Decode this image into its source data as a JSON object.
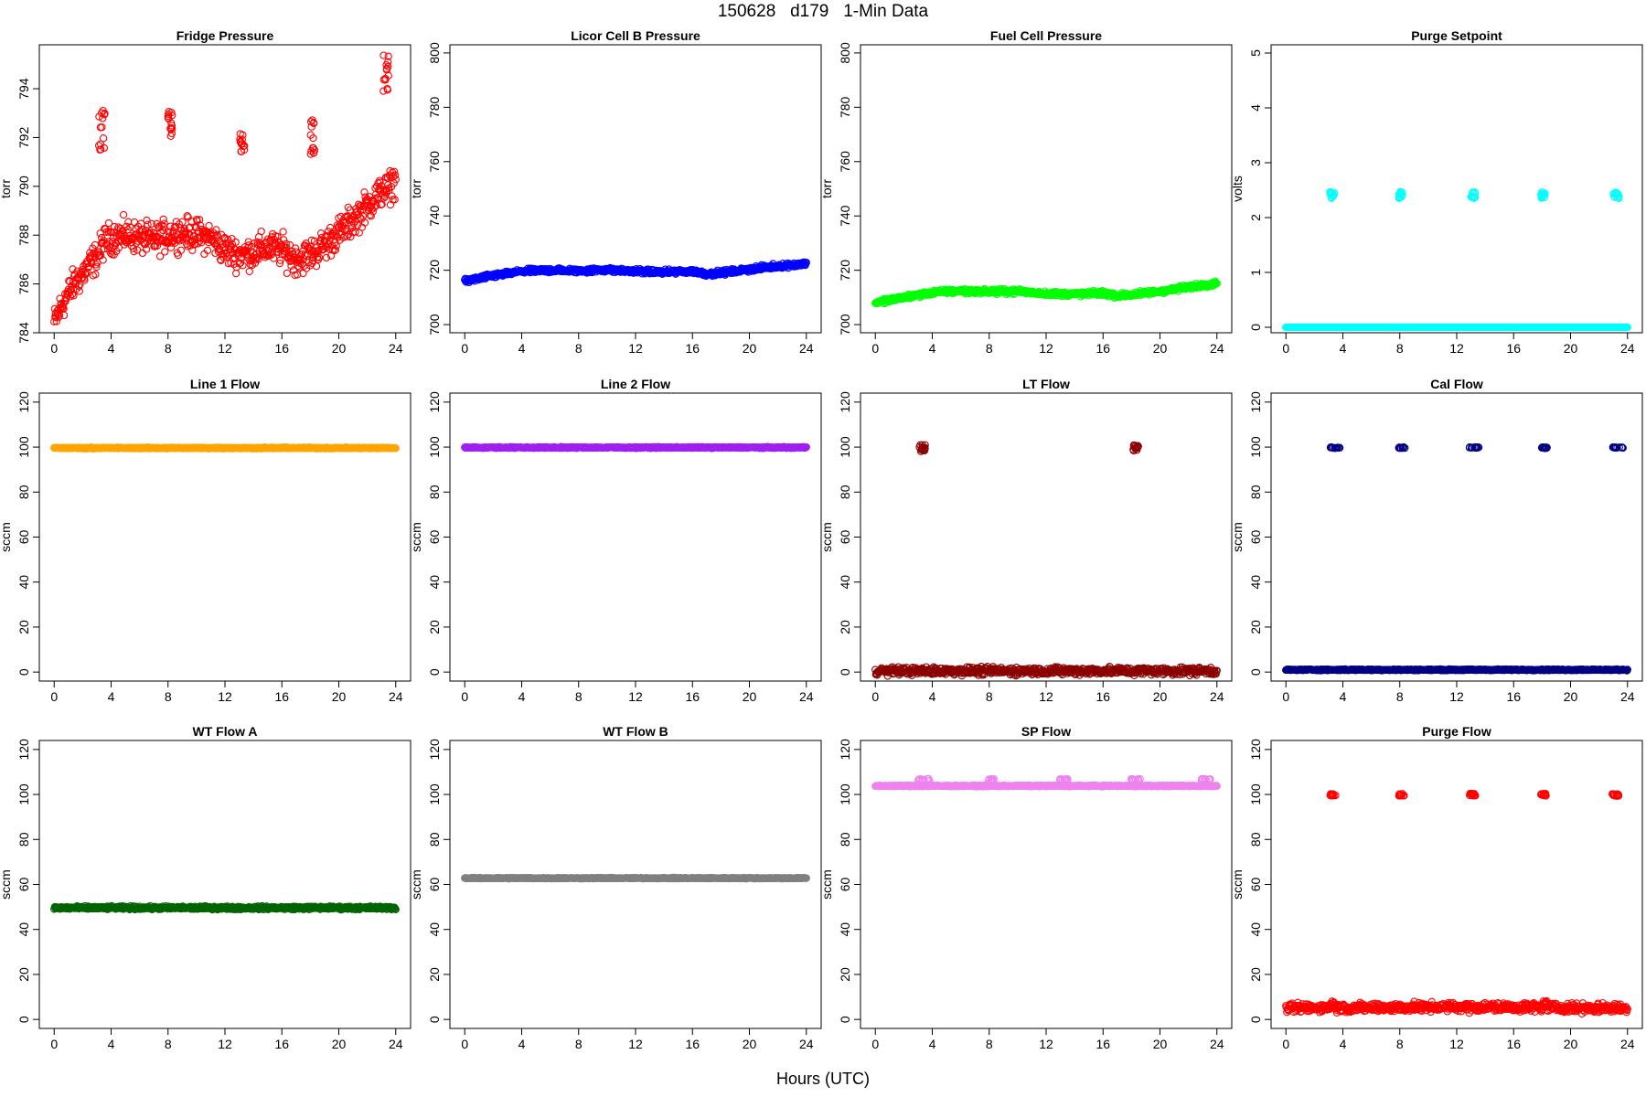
{
  "figure": {
    "title": "150628   d179   1-Min Data",
    "xlabel": "Hours (UTC)"
  },
  "chart_data": [
    {
      "type": "scatter",
      "title": "Fridge Pressure",
      "ylabel": "torr",
      "color": "#ff0000",
      "marker": "open-circle",
      "xlim": [
        0,
        24
      ],
      "ylim": [
        784,
        795.8
      ],
      "xticks": [
        0,
        4,
        8,
        12,
        16,
        20,
        24
      ],
      "yticks": [
        784,
        786,
        788,
        790,
        792,
        794
      ],
      "profile": [
        [
          0,
          784.4
        ],
        [
          0.5,
          785.1
        ],
        [
          1,
          785.6
        ],
        [
          1.5,
          786.1
        ],
        [
          2,
          786.4
        ],
        [
          2.5,
          786.8
        ],
        [
          3,
          787.1
        ],
        [
          3.5,
          787.7
        ],
        [
          4,
          787.9
        ],
        [
          5,
          788.0
        ],
        [
          6,
          787.9
        ],
        [
          7,
          787.8
        ],
        [
          8,
          788.0
        ],
        [
          9,
          788.1
        ],
        [
          10,
          788.0
        ],
        [
          11,
          787.9
        ],
        [
          12,
          787.4
        ],
        [
          13,
          787.2
        ],
        [
          14,
          787.3
        ],
        [
          15,
          787.5
        ],
        [
          16,
          787.4
        ],
        [
          17,
          787.0
        ],
        [
          18,
          787.2
        ],
        [
          19,
          787.6
        ],
        [
          20,
          788.1
        ],
        [
          21,
          788.6
        ],
        [
          22,
          789.2
        ],
        [
          23,
          789.8
        ],
        [
          23.5,
          789.9
        ],
        [
          24,
          790.3
        ]
      ],
      "noise": 0.45,
      "clusters": [
        {
          "x": [
            3.1,
            3.6
          ],
          "y": [
            791.3,
            793.1
          ]
        },
        {
          "x": [
            8.0,
            8.3
          ],
          "y": [
            792.0,
            793.1
          ]
        },
        {
          "x": [
            13.0,
            13.4
          ],
          "y": [
            791.4,
            792.2
          ]
        },
        {
          "x": [
            18.0,
            18.3
          ],
          "y": [
            791.3,
            793.0
          ]
        },
        {
          "x": [
            23.1,
            23.5
          ],
          "y": [
            793.8,
            795.4
          ]
        }
      ]
    },
    {
      "type": "scatter",
      "title": "Licor Cell B Pressure",
      "ylabel": "torr",
      "color": "#0000ff",
      "marker": "open-circle",
      "xlim": [
        0,
        24
      ],
      "ylim": [
        697,
        803
      ],
      "xticks": [
        0,
        4,
        8,
        12,
        16,
        20,
        24
      ],
      "yticks": [
        700,
        720,
        740,
        760,
        780,
        800
      ],
      "profile": [
        [
          0,
          716
        ],
        [
          2,
          718
        ],
        [
          4,
          719.6
        ],
        [
          6,
          720
        ],
        [
          8,
          719.8
        ],
        [
          10,
          720.2
        ],
        [
          12,
          719.6
        ],
        [
          14,
          719.3
        ],
        [
          16,
          719.6
        ],
        [
          17,
          718.7
        ],
        [
          18,
          719
        ],
        [
          20,
          720.4
        ],
        [
          22,
          721.5
        ],
        [
          24,
          722.5
        ]
      ],
      "noise": 0.6,
      "clusters": []
    },
    {
      "type": "scatter",
      "title": "Fuel Cell Pressure",
      "ylabel": "torr",
      "color": "#00ff00",
      "marker": "open-circle",
      "xlim": [
        0,
        24
      ],
      "ylim": [
        697,
        803
      ],
      "xticks": [
        0,
        4,
        8,
        12,
        16,
        20,
        24
      ],
      "yticks": [
        700,
        720,
        740,
        760,
        780,
        800
      ],
      "profile": [
        [
          0,
          708
        ],
        [
          2,
          710
        ],
        [
          4,
          711.8
        ],
        [
          6,
          712.4
        ],
        [
          8,
          712.1
        ],
        [
          10,
          712.3
        ],
        [
          12,
          711.4
        ],
        [
          14,
          711.2
        ],
        [
          16,
          711.6
        ],
        [
          17,
          710.6
        ],
        [
          18,
          711
        ],
        [
          20,
          712.2
        ],
        [
          22,
          713.8
        ],
        [
          24,
          715.3
        ]
      ],
      "noise": 0.6,
      "clusters": []
    },
    {
      "type": "scatter",
      "title": "Purge Setpoint",
      "ylabel": "volts",
      "color": "#00ffff",
      "marker": "open-circle",
      "xlim": [
        0,
        24
      ],
      "ylim": [
        -0.1,
        5.15
      ],
      "xticks": [
        0,
        4,
        8,
        12,
        16,
        20,
        24
      ],
      "yticks": [
        0,
        1,
        2,
        3,
        4,
        5
      ],
      "profile": [
        [
          0,
          0
        ],
        [
          24,
          0
        ]
      ],
      "noise": 0,
      "clusters": [
        {
          "x": [
            3.1,
            3.5
          ],
          "y": [
            2.35,
            2.47
          ]
        },
        {
          "x": [
            7.9,
            8.2
          ],
          "y": [
            2.35,
            2.47
          ]
        },
        {
          "x": [
            13.0,
            13.3
          ],
          "y": [
            2.35,
            2.47
          ]
        },
        {
          "x": [
            17.9,
            18.2
          ],
          "y": [
            2.35,
            2.47
          ]
        },
        {
          "x": [
            23.0,
            23.4
          ],
          "y": [
            2.35,
            2.47
          ]
        }
      ]
    },
    {
      "type": "scatter",
      "title": "Line 1 Flow",
      "ylabel": "sccm",
      "color": "#ffa500",
      "marker": "open-circle",
      "xlim": [
        0,
        24
      ],
      "ylim": [
        -4,
        124
      ],
      "xticks": [
        0,
        4,
        8,
        12,
        16,
        20,
        24
      ],
      "yticks": [
        0,
        20,
        40,
        60,
        80,
        100,
        120
      ],
      "profile": [
        [
          0,
          99.6
        ],
        [
          24,
          99.6
        ]
      ],
      "noise": 0.2,
      "clusters": []
    },
    {
      "type": "scatter",
      "title": "Line 2 Flow",
      "ylabel": "sccm",
      "color": "#a020f0",
      "marker": "open-circle",
      "xlim": [
        0,
        24
      ],
      "ylim": [
        -4,
        124
      ],
      "xticks": [
        0,
        4,
        8,
        12,
        16,
        20,
        24
      ],
      "yticks": [
        0,
        20,
        40,
        60,
        80,
        100,
        120
      ],
      "profile": [
        [
          0,
          99.8
        ],
        [
          24,
          99.8
        ]
      ],
      "noise": 0.2,
      "clusters": []
    },
    {
      "type": "scatter",
      "title": "LT Flow",
      "ylabel": "sccm",
      "color": "#8b0000",
      "marker": "open-circle",
      "xlim": [
        0,
        24
      ],
      "ylim": [
        -4,
        124
      ],
      "xticks": [
        0,
        4,
        8,
        12,
        16,
        20,
        24
      ],
      "yticks": [
        0,
        20,
        40,
        60,
        80,
        100,
        120
      ],
      "profile": [
        [
          0,
          0.5
        ],
        [
          24,
          0.5
        ]
      ],
      "noise": 1.2,
      "clusters": [
        {
          "x": [
            3.1,
            3.5
          ],
          "y": [
            98,
            101
          ]
        },
        {
          "x": [
            18.1,
            18.5
          ],
          "y": [
            98,
            101
          ]
        }
      ]
    },
    {
      "type": "scatter",
      "title": "Cal Flow",
      "ylabel": "sccm",
      "color": "#000080",
      "marker": "open-circle",
      "xlim": [
        0,
        24
      ],
      "ylim": [
        -4,
        124
      ],
      "xticks": [
        0,
        4,
        8,
        12,
        16,
        20,
        24
      ],
      "yticks": [
        0,
        20,
        40,
        60,
        80,
        100,
        120
      ],
      "profile": [
        [
          0,
          1
        ],
        [
          24,
          1
        ]
      ],
      "noise": 0.2,
      "clusters": [
        {
          "x": [
            3.0,
            3.8
          ],
          "y": [
            99.5,
            100
          ]
        },
        {
          "x": [
            7.9,
            8.4
          ],
          "y": [
            99.5,
            100
          ]
        },
        {
          "x": [
            12.9,
            13.6
          ],
          "y": [
            99.5,
            100
          ]
        },
        {
          "x": [
            17.9,
            18.4
          ],
          "y": [
            99.5,
            100
          ]
        },
        {
          "x": [
            22.9,
            23.7
          ],
          "y": [
            99.5,
            100
          ]
        }
      ]
    },
    {
      "type": "scatter",
      "title": "WT Flow A",
      "ylabel": "sccm",
      "color": "#006400",
      "marker": "open-circle",
      "xlim": [
        0,
        24
      ],
      "ylim": [
        -4,
        124
      ],
      "xticks": [
        0,
        4,
        8,
        12,
        16,
        20,
        24
      ],
      "yticks": [
        0,
        20,
        40,
        60,
        80,
        100,
        120
      ],
      "profile": [
        [
          0,
          49.6
        ],
        [
          24,
          49.6
        ]
      ],
      "noise": 0.5,
      "clusters": []
    },
    {
      "type": "scatter",
      "title": "WT Flow B",
      "ylabel": "sccm",
      "color": "#808080",
      "marker": "open-circle",
      "xlim": [
        0,
        24
      ],
      "ylim": [
        -4,
        124
      ],
      "xticks": [
        0,
        4,
        8,
        12,
        16,
        20,
        24
      ],
      "yticks": [
        0,
        20,
        40,
        60,
        80,
        100,
        120
      ],
      "profile": [
        [
          0,
          62.8
        ],
        [
          24,
          62.8
        ]
      ],
      "noise": 0.15,
      "clusters": []
    },
    {
      "type": "scatter",
      "title": "SP Flow",
      "ylabel": "sccm",
      "color": "#ee82ee",
      "marker": "open-circle",
      "xlim": [
        0,
        24
      ],
      "ylim": [
        -4,
        124
      ],
      "xticks": [
        0,
        4,
        8,
        12,
        16,
        20,
        24
      ],
      "yticks": [
        0,
        20,
        40,
        60,
        80,
        100,
        120
      ],
      "profile": [
        [
          0,
          103.8
        ],
        [
          24,
          103.8
        ]
      ],
      "noise": 0.2,
      "clusters": [
        {
          "x": [
            3.0,
            3.8
          ],
          "y": [
            106,
            107
          ]
        },
        {
          "x": [
            7.9,
            8.5
          ],
          "y": [
            106,
            107
          ]
        },
        {
          "x": [
            12.9,
            13.6
          ],
          "y": [
            106,
            107
          ]
        },
        {
          "x": [
            17.9,
            18.6
          ],
          "y": [
            106,
            107
          ]
        },
        {
          "x": [
            22.9,
            23.6
          ],
          "y": [
            106,
            107
          ]
        }
      ]
    },
    {
      "type": "scatter",
      "title": "Purge Flow",
      "ylabel": "sccm",
      "color": "#ff0000",
      "marker": "open-circle",
      "xlim": [
        0,
        24
      ],
      "ylim": [
        -4,
        124
      ],
      "xticks": [
        0,
        4,
        8,
        12,
        16,
        20,
        24
      ],
      "yticks": [
        0,
        20,
        40,
        60,
        80,
        100,
        120
      ],
      "profile": [
        [
          0,
          5
        ],
        [
          3,
          5.3
        ],
        [
          3.3,
          7
        ],
        [
          3.6,
          5.2
        ],
        [
          12,
          5.5
        ],
        [
          18,
          5.4
        ],
        [
          18.2,
          7.5
        ],
        [
          18.5,
          5.2
        ],
        [
          24,
          5
        ]
      ],
      "noise": 1.4,
      "clusters": [
        {
          "x": [
            3.1,
            3.5
          ],
          "y": [
            99.3,
            100.4
          ]
        },
        {
          "x": [
            7.9,
            8.3
          ],
          "y": [
            99.3,
            100.4
          ]
        },
        {
          "x": [
            12.9,
            13.4
          ],
          "y": [
            99.3,
            100.4
          ]
        },
        {
          "x": [
            17.9,
            18.3
          ],
          "y": [
            99.3,
            100.4
          ]
        },
        {
          "x": [
            22.9,
            23.5
          ],
          "y": [
            99.3,
            100.4
          ]
        }
      ]
    }
  ]
}
